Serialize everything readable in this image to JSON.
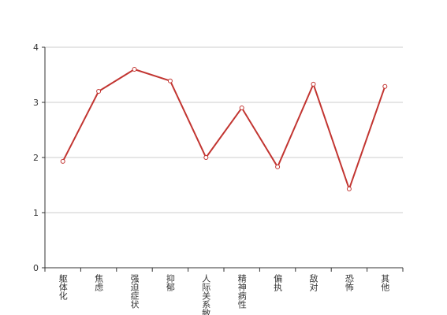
{
  "chart_data": {
    "type": "line",
    "categories": [
      "躯体化",
      "焦虑",
      "强迫症状",
      "抑郁",
      "人际关系敏感",
      "精神病性",
      "偏执",
      "敌对",
      "恐怖",
      "其他"
    ],
    "series": [
      {
        "name": null,
        "color": "#c23531",
        "values": [
          1.93,
          3.2,
          3.6,
          3.39,
          2.0,
          2.9,
          1.83,
          3.33,
          1.43,
          3.29
        ]
      }
    ],
    "ylim": [
      0,
      4
    ],
    "yticks": [
      0,
      1,
      2,
      3,
      4
    ],
    "grid": true
  }
}
